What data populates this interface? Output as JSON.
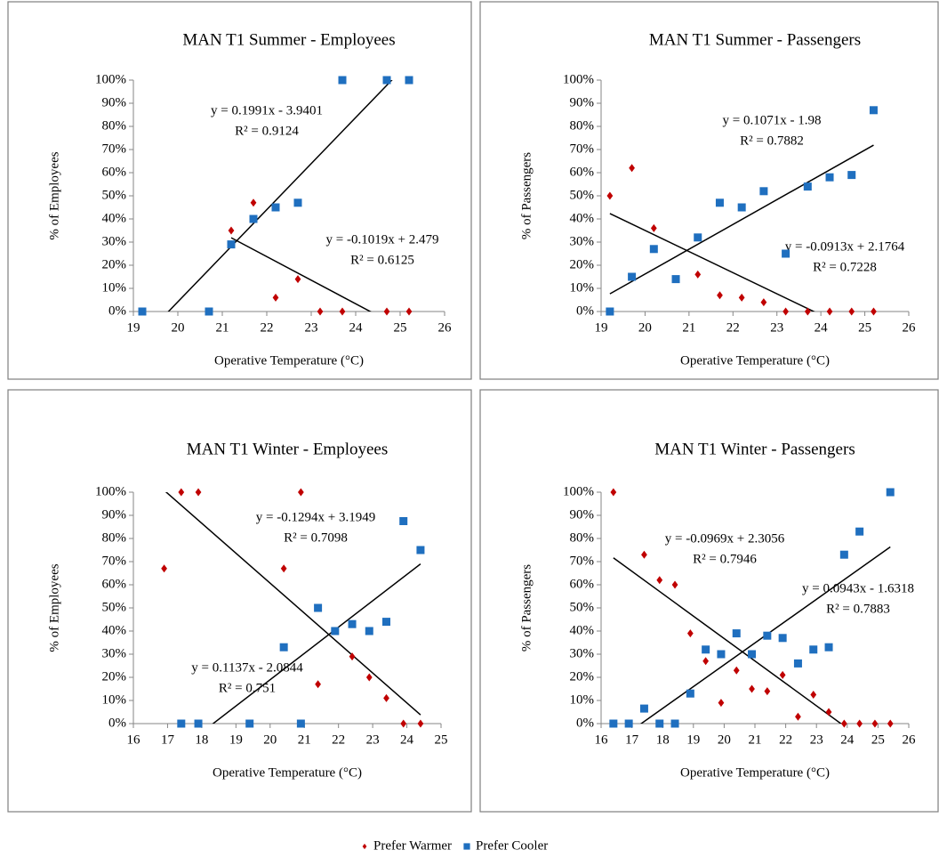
{
  "chart_data": [
    {
      "type": "scatter",
      "title": "MAN T1 Summer - Employees",
      "x_label": "Operative Temperature (°C)",
      "y_label": "% of Employees",
      "xlim": [
        19,
        26
      ],
      "xticks": [
        19,
        20,
        21,
        22,
        23,
        24,
        25,
        26
      ],
      "ylim": [
        0,
        1
      ],
      "yticks": [
        {
          "value": 0,
          "label": "0%"
        },
        {
          "value": 0.1,
          "label": "10%"
        },
        {
          "value": 0.2,
          "label": "20%"
        },
        {
          "value": 0.3,
          "label": "30%"
        },
        {
          "value": 0.4,
          "label": "40%"
        },
        {
          "value": 0.5,
          "label": "50%"
        },
        {
          "value": 0.6,
          "label": "60%"
        },
        {
          "value": 0.7,
          "label": "70%"
        },
        {
          "value": 0.8,
          "label": "80%"
        },
        {
          "value": 0.9,
          "label": "90%"
        },
        {
          "value": 1,
          "label": "100%"
        }
      ],
      "series": [
        {
          "name": "Prefer Warmer",
          "color": "#c00000",
          "marker": "diamond",
          "x": [
            21.2,
            21.7,
            22.2,
            22.7,
            23.2,
            23.7,
            24.7,
            25.2
          ],
          "values": [
            0.35,
            0.47,
            0.06,
            0.14,
            0,
            0,
            0,
            0
          ],
          "trendline": {
            "slope": -0.1019,
            "intercept": 2.479,
            "equation": "y = -0.1019x + 2.479",
            "r2": "R² = 0.6125"
          }
        },
        {
          "name": "Prefer Cooler",
          "color": "#1f6fbf",
          "marker": "square",
          "x": [
            19.2,
            20.7,
            21.2,
            21.7,
            22.2,
            22.7,
            23.7,
            24.7,
            25.2
          ],
          "values": [
            0,
            0,
            0.29,
            0.4,
            0.45,
            0.47,
            1,
            1,
            1
          ],
          "trendline": {
            "slope": 0.1991,
            "intercept": -3.9401,
            "equation": "y = 0.1991x - 3.9401",
            "r2": "R² = 0.9124"
          }
        }
      ]
    },
    {
      "type": "scatter",
      "title": "MAN T1 Summer - Passengers",
      "x_label": "Operative Temperature (°C)",
      "y_label": "% of Passengers",
      "xlim": [
        19,
        26
      ],
      "xticks": [
        19,
        20,
        21,
        22,
        23,
        24,
        25,
        26
      ],
      "ylim": [
        0,
        1
      ],
      "yticks": [
        {
          "value": 0,
          "label": "0%"
        },
        {
          "value": 0.1,
          "label": "10%"
        },
        {
          "value": 0.2,
          "label": "20%"
        },
        {
          "value": 0.3,
          "label": "30%"
        },
        {
          "value": 0.4,
          "label": "40%"
        },
        {
          "value": 0.5,
          "label": "50%"
        },
        {
          "value": 0.6,
          "label": "60%"
        },
        {
          "value": 0.7,
          "label": "70%"
        },
        {
          "value": 0.8,
          "label": "80%"
        },
        {
          "value": 0.9,
          "label": "90%"
        },
        {
          "value": 1,
          "label": "100%"
        }
      ],
      "series": [
        {
          "color": "#c00000",
          "marker": "diamond",
          "x": [
            19.2,
            19.7,
            20.2,
            21.2,
            21.7,
            22.2,
            22.7,
            23.2,
            23.7,
            24.2,
            24.7,
            25.2
          ],
          "values": [
            0.5,
            0.62,
            0.36,
            0.16,
            0.07,
            0.06,
            0.04,
            0,
            0,
            0,
            0,
            0
          ],
          "trendline": {
            "slope": -0.0913,
            "intercept": 2.1764,
            "equation": "y = -0.0913x + 2.1764",
            "r2": "R² = 0.7228"
          }
        },
        {
          "color": "#1f6fbf",
          "marker": "square",
          "x": [
            19.2,
            19.7,
            20.2,
            20.7,
            21.2,
            21.7,
            22.2,
            22.7,
            23.2,
            23.7,
            24.2,
            24.7,
            25.2
          ],
          "values": [
            0,
            0.15,
            0.27,
            0.14,
            0.32,
            0.47,
            0.45,
            0.52,
            0.25,
            0.54,
            0.58,
            0.59,
            0.87
          ],
          "trendline": {
            "slope": 0.1071,
            "intercept": -1.98,
            "equation": "y = 0.1071x - 1.98",
            "r2": "R² = 0.7882"
          }
        }
      ]
    },
    {
      "type": "scatter",
      "title": "MAN T1 Winter - Employees",
      "x_label": "Operative Temperature (°C)",
      "y_label": "% of Employees",
      "xlim": [
        16,
        25
      ],
      "xticks": [
        16,
        17,
        18,
        19,
        20,
        21,
        22,
        23,
        24,
        25
      ],
      "ylim": [
        0,
        1
      ],
      "yticks": [
        {
          "value": 0,
          "label": "0%"
        },
        {
          "value": 0.1,
          "label": "10%"
        },
        {
          "value": 0.2,
          "label": "20%"
        },
        {
          "value": 0.3,
          "label": "30%"
        },
        {
          "value": 0.4,
          "label": "40%"
        },
        {
          "value": 0.5,
          "label": "50%"
        },
        {
          "value": 0.6,
          "label": "60%"
        },
        {
          "value": 0.7,
          "label": "70%"
        },
        {
          "value": 0.8,
          "label": "80%"
        },
        {
          "value": 0.9,
          "label": "90%"
        },
        {
          "value": 1,
          "label": "100%"
        }
      ],
      "series": [
        {
          "color": "#c00000",
          "marker": "diamond",
          "x": [
            16.9,
            17.4,
            17.9,
            20.4,
            20.9,
            21.4,
            22.4,
            22.9,
            23.4,
            23.9,
            24.4
          ],
          "values": [
            0.67,
            1,
            1,
            0.67,
            1,
            0.17,
            0.29,
            0.2,
            0.11,
            0,
            0
          ],
          "trendline": {
            "slope": -0.1294,
            "intercept": 3.1949,
            "equation": "y = -0.1294x + 3.1949",
            "r2": "R² = 0.7098"
          }
        },
        {
          "color": "#1f6fbf",
          "marker": "square",
          "x": [
            17.4,
            17.9,
            19.4,
            20.4,
            20.9,
            21.4,
            21.9,
            22.4,
            22.9,
            23.4,
            23.9,
            24.4
          ],
          "values": [
            0,
            0,
            0,
            0.33,
            0,
            0.5,
            0.4,
            0.43,
            0.4,
            0.44,
            0.875,
            0.75
          ],
          "trendline": {
            "slope": 0.1137,
            "intercept": -2.0844,
            "equation": "y = 0.1137x - 2.0844",
            "r2": "R² = 0.751"
          }
        }
      ]
    },
    {
      "type": "scatter",
      "title": "MAN T1 Winter - Passengers",
      "x_label": "Operative Temperature (°C)",
      "y_label": "% of Passengers",
      "xlim": [
        16,
        26
      ],
      "xticks": [
        16,
        17,
        18,
        19,
        20,
        21,
        22,
        23,
        24,
        25,
        26
      ],
      "ylim": [
        0,
        1
      ],
      "yticks": [
        {
          "value": 0,
          "label": "0%"
        },
        {
          "value": 0.1,
          "label": "10%"
        },
        {
          "value": 0.2,
          "label": "20%"
        },
        {
          "value": 0.3,
          "label": "30%"
        },
        {
          "value": 0.4,
          "label": "40%"
        },
        {
          "value": 0.5,
          "label": "50%"
        },
        {
          "value": 0.6,
          "label": "60%"
        },
        {
          "value": 0.7,
          "label": "70%"
        },
        {
          "value": 0.8,
          "label": "80%"
        },
        {
          "value": 0.9,
          "label": "90%"
        },
        {
          "value": 1,
          "label": "100%"
        }
      ],
      "series": [
        {
          "color": "#c00000",
          "marker": "diamond",
          "x": [
            16.4,
            17.4,
            17.9,
            18.4,
            18.9,
            19.4,
            19.9,
            20.4,
            20.9,
            21.4,
            21.9,
            22.4,
            22.9,
            23.4,
            23.9,
            24.4,
            24.9,
            25.4
          ],
          "values": [
            1,
            0.73,
            0.62,
            0.6,
            0.39,
            0.27,
            0.09,
            0.23,
            0.15,
            0.14,
            0.21,
            0.03,
            0.125,
            0.05,
            0,
            0,
            0,
            0
          ],
          "trendline": {
            "slope": -0.0969,
            "intercept": 2.3056,
            "equation": "y = -0.0969x + 2.3056",
            "r2": "R² = 0.7946"
          }
        },
        {
          "color": "#1f6fbf",
          "marker": "square",
          "x": [
            16.4,
            16.9,
            17.4,
            17.9,
            18.4,
            18.9,
            19.4,
            19.9,
            20.4,
            20.9,
            21.4,
            21.9,
            22.4,
            22.9,
            23.4,
            23.9,
            24.4,
            25.4
          ],
          "values": [
            0,
            0,
            0.065,
            0,
            0,
            0.13,
            0.32,
            0.3,
            0.39,
            0.3,
            0.38,
            0.37,
            0.26,
            0.32,
            0.33,
            0.73,
            0.83,
            1
          ],
          "trendline": {
            "slope": 0.0943,
            "intercept": -1.6318,
            "equation": "y = 0.0943x - 1.6318",
            "r2": "R² = 0.7883"
          }
        }
      ]
    }
  ]
}
